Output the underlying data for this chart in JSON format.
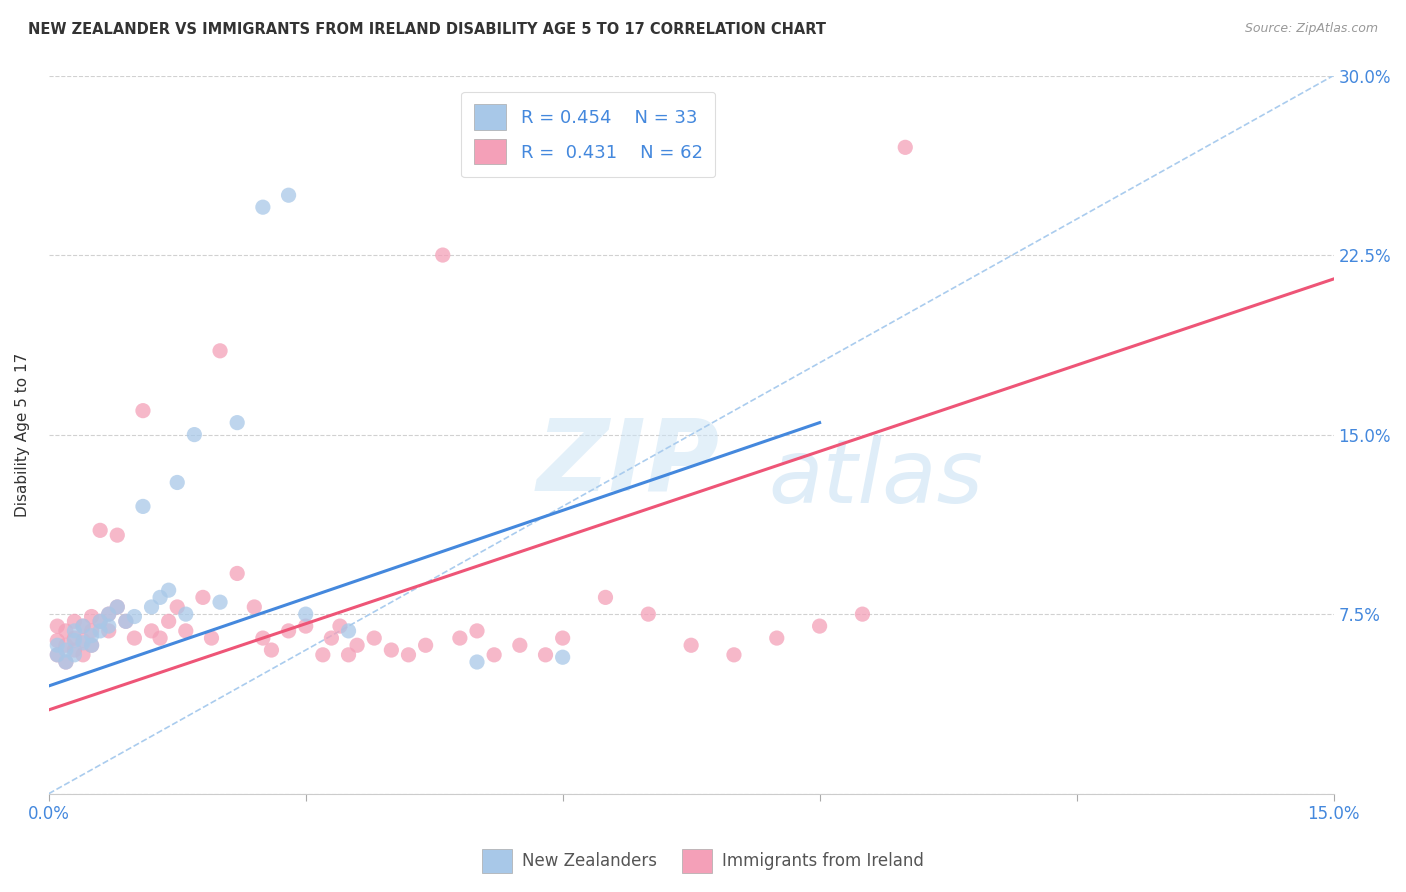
{
  "title": "NEW ZEALANDER VS IMMIGRANTS FROM IRELAND DISABILITY AGE 5 TO 17 CORRELATION CHART",
  "source": "Source: ZipAtlas.com",
  "ylabel": "Disability Age 5 to 17",
  "xlim": [
    0.0,
    0.15
  ],
  "ylim": [
    0.0,
    0.3
  ],
  "xticks": [
    0.0,
    0.03,
    0.06,
    0.09,
    0.12,
    0.15
  ],
  "yticks": [
    0.0,
    0.075,
    0.15,
    0.225,
    0.3
  ],
  "xtick_labels": [
    "0.0%",
    "",
    "",
    "",
    "",
    "15.0%"
  ],
  "ytick_labels": [
    "",
    "7.5%",
    "15.0%",
    "22.5%",
    "30.0%"
  ],
  "background_color": "#ffffff",
  "grid_color": "#cccccc",
  "nz_color": "#a8c8e8",
  "ire_color": "#f4a0b8",
  "nz_line_color": "#4488dd",
  "ire_line_color": "#ee5577",
  "dashed_line_color": "#aaccee",
  "legend_r_nz": "0.454",
  "legend_n_nz": "33",
  "legend_r_ire": "0.431",
  "legend_n_ire": "62",
  "nz_scatter_x": [
    0.001,
    0.001,
    0.002,
    0.002,
    0.003,
    0.003,
    0.003,
    0.004,
    0.004,
    0.005,
    0.005,
    0.006,
    0.006,
    0.007,
    0.007,
    0.008,
    0.009,
    0.01,
    0.011,
    0.012,
    0.013,
    0.014,
    0.015,
    0.016,
    0.017,
    0.02,
    0.022,
    0.025,
    0.028,
    0.03,
    0.035,
    0.05,
    0.06
  ],
  "nz_scatter_y": [
    0.062,
    0.058,
    0.06,
    0.055,
    0.068,
    0.064,
    0.058,
    0.07,
    0.063,
    0.066,
    0.062,
    0.072,
    0.068,
    0.075,
    0.07,
    0.078,
    0.072,
    0.074,
    0.12,
    0.078,
    0.082,
    0.085,
    0.13,
    0.075,
    0.15,
    0.08,
    0.155,
    0.245,
    0.25,
    0.075,
    0.068,
    0.055,
    0.057
  ],
  "ire_scatter_x": [
    0.001,
    0.001,
    0.001,
    0.002,
    0.002,
    0.002,
    0.003,
    0.003,
    0.003,
    0.004,
    0.004,
    0.004,
    0.005,
    0.005,
    0.005,
    0.006,
    0.006,
    0.007,
    0.007,
    0.008,
    0.008,
    0.009,
    0.01,
    0.011,
    0.012,
    0.013,
    0.014,
    0.015,
    0.016,
    0.018,
    0.019,
    0.02,
    0.022,
    0.024,
    0.025,
    0.026,
    0.028,
    0.03,
    0.032,
    0.033,
    0.034,
    0.035,
    0.036,
    0.038,
    0.04,
    0.042,
    0.044,
    0.046,
    0.048,
    0.05,
    0.052,
    0.055,
    0.058,
    0.06,
    0.065,
    0.07,
    0.075,
    0.08,
    0.085,
    0.09,
    0.095,
    0.1
  ],
  "ire_scatter_y": [
    0.058,
    0.064,
    0.07,
    0.055,
    0.062,
    0.068,
    0.06,
    0.065,
    0.072,
    0.058,
    0.064,
    0.07,
    0.062,
    0.068,
    0.074,
    0.11,
    0.072,
    0.075,
    0.068,
    0.108,
    0.078,
    0.072,
    0.065,
    0.16,
    0.068,
    0.065,
    0.072,
    0.078,
    0.068,
    0.082,
    0.065,
    0.185,
    0.092,
    0.078,
    0.065,
    0.06,
    0.068,
    0.07,
    0.058,
    0.065,
    0.07,
    0.058,
    0.062,
    0.065,
    0.06,
    0.058,
    0.062,
    0.225,
    0.065,
    0.068,
    0.058,
    0.062,
    0.058,
    0.065,
    0.082,
    0.075,
    0.062,
    0.058,
    0.065,
    0.07,
    0.075,
    0.27
  ],
  "nz_line_x0": 0.0,
  "nz_line_y0": 0.045,
  "nz_line_x1": 0.09,
  "nz_line_y1": 0.155,
  "ire_line_x0": 0.0,
  "ire_line_y0": 0.035,
  "ire_line_x1": 0.15,
  "ire_line_y1": 0.215
}
